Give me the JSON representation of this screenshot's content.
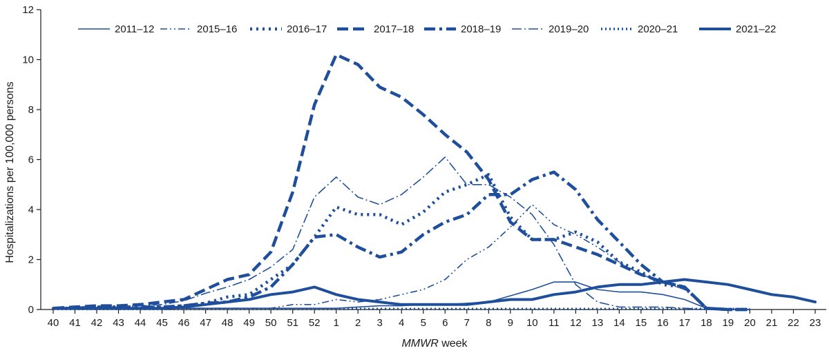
{
  "chart_data": {
    "type": "line",
    "title": "",
    "xlabel_italic": "MMWR",
    "xlabel_rest": " week",
    "ylabel": "Hospitalizations per 100,000 persons",
    "ylim": [
      0,
      12
    ],
    "yticks": [
      0,
      2,
      4,
      6,
      8,
      10,
      12
    ],
    "grid": false,
    "legend_position": "top",
    "line_color": "#1f4e9b",
    "x_labels": [
      "40",
      "41",
      "42",
      "43",
      "44",
      "45",
      "46",
      "47",
      "48",
      "49",
      "50",
      "51",
      "52",
      "1",
      "2",
      "3",
      "4",
      "5",
      "6",
      "7",
      "8",
      "9",
      "10",
      "11",
      "12",
      "13",
      "14",
      "15",
      "16",
      "17",
      "18",
      "19",
      "20",
      "21",
      "22",
      "23"
    ],
    "series": [
      {
        "name": "2011–12",
        "style": "thin-solid",
        "values": [
          0.05,
          0.05,
          0.05,
          0.05,
          0.05,
          0.05,
          0.05,
          0.05,
          0.05,
          0.05,
          0.05,
          0.05,
          0.05,
          0.05,
          0.1,
          0.15,
          0.15,
          0.2,
          0.2,
          0.25,
          0.3,
          0.55,
          0.8,
          1.1,
          1.1,
          0.8,
          0.7,
          0.7,
          0.6,
          0.4,
          0.05,
          0,
          0,
          null,
          null,
          null
        ]
      },
      {
        "name": "2015–16",
        "style": "thin-dashdot2",
        "values": [
          0.05,
          0.05,
          0.05,
          0.05,
          0.05,
          0.05,
          0.05,
          0.05,
          0.05,
          0.05,
          0.05,
          0.2,
          0.2,
          0.4,
          0.3,
          0.4,
          0.6,
          0.8,
          1.2,
          2.0,
          2.5,
          3.3,
          4.2,
          3.4,
          3.0,
          2.5,
          1.9,
          1.4,
          1.1,
          0.8,
          0.05,
          0,
          0,
          null,
          null,
          null
        ]
      },
      {
        "name": "2016–17",
        "style": "thick-dotted",
        "values": [
          0.05,
          0.05,
          0.05,
          0.05,
          0.05,
          0.1,
          0.15,
          0.25,
          0.5,
          0.6,
          1.2,
          1.8,
          2.9,
          4.1,
          3.8,
          3.8,
          3.4,
          3.9,
          4.7,
          5.0,
          5.4,
          3.7,
          2.8,
          2.8,
          3.1,
          2.7,
          1.9,
          1.5,
          1.0,
          0.9,
          0.05,
          0,
          0,
          null,
          null,
          null
        ]
      },
      {
        "name": "2017–18",
        "style": "thick-dashed",
        "values": [
          0.05,
          0.1,
          0.15,
          0.15,
          0.2,
          0.3,
          0.4,
          0.8,
          1.2,
          1.4,
          2.3,
          4.7,
          8.2,
          10.2,
          9.8,
          8.9,
          8.5,
          7.8,
          7.0,
          6.3,
          5.2,
          3.5,
          2.8,
          2.8,
          2.5,
          2.2,
          1.8,
          1.4,
          1.1,
          0.9,
          0.05,
          0,
          0,
          null,
          null,
          null
        ]
      },
      {
        "name": "2018–19",
        "style": "thick-dashdot",
        "values": [
          0.05,
          0.05,
          0.1,
          0.1,
          0.1,
          0.1,
          0.15,
          0.25,
          0.3,
          0.5,
          0.9,
          1.8,
          2.9,
          3.0,
          2.5,
          2.1,
          2.3,
          3.0,
          3.5,
          3.8,
          4.6,
          4.6,
          5.2,
          5.5,
          4.8,
          3.6,
          2.7,
          1.8,
          1.1,
          0.9,
          0.05,
          0,
          0,
          null,
          null,
          null
        ]
      },
      {
        "name": "2019–20",
        "style": "thin-longdash",
        "values": [
          0.05,
          0.05,
          0.1,
          0.1,
          0.15,
          0.2,
          0.35,
          0.65,
          0.9,
          1.2,
          1.7,
          2.4,
          4.5,
          5.3,
          4.5,
          4.2,
          4.6,
          5.3,
          6.1,
          5.0,
          5.0,
          4.5,
          3.8,
          2.6,
          1.0,
          0.3,
          0.1,
          0.1,
          0.1,
          0.05,
          0,
          0,
          null,
          null,
          null,
          null
        ]
      },
      {
        "name": "2020–21",
        "style": "thick-fine-dotted",
        "values": [
          0.02,
          0.02,
          0.02,
          0.02,
          0.02,
          0.02,
          0.02,
          0.02,
          0.02,
          0.02,
          0.02,
          0.02,
          0.02,
          0.02,
          0.02,
          0.02,
          0.02,
          0.02,
          0.02,
          0.02,
          0.02,
          0.02,
          0.02,
          0.02,
          0.02,
          0.02,
          0.02,
          0.02,
          0.02,
          0.02,
          0.02,
          0.02,
          0.02,
          null,
          null,
          null
        ]
      },
      {
        "name": "2021–22",
        "style": "thick-solid",
        "values": [
          0.05,
          0.05,
          0.05,
          0.05,
          0.05,
          0.05,
          0.1,
          0.2,
          0.3,
          0.4,
          0.6,
          0.7,
          0.9,
          0.6,
          0.4,
          0.3,
          0.2,
          0.2,
          0.2,
          0.2,
          0.3,
          0.4,
          0.4,
          0.6,
          0.7,
          0.9,
          1.0,
          1.0,
          1.1,
          1.2,
          1.1,
          1.0,
          0.8,
          0.6,
          0.5,
          0.3
        ]
      }
    ]
  }
}
